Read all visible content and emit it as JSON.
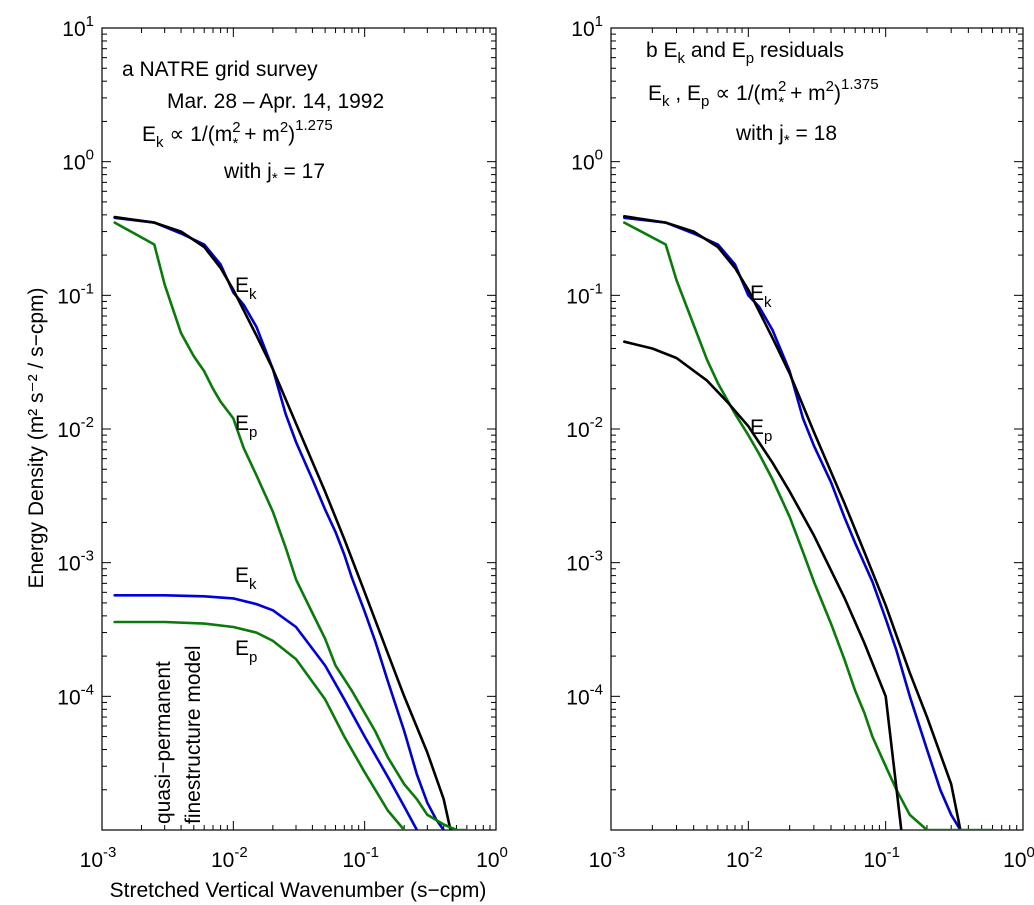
{
  "figure": {
    "ylabel": "Energy Density (m² s⁻² / s−cpm)",
    "xlabel": "Stretched Vertical Wavenumber (s−cpm)"
  },
  "chart_data": [
    {
      "type": "line",
      "panel": "a",
      "xscale": "log",
      "yscale": "log",
      "xlim": [
        0.001,
        1
      ],
      "ylim": [
        1e-05,
        10
      ],
      "x_ticks": [
        {
          "base": "10",
          "exp": "-3"
        },
        {
          "base": "10",
          "exp": "-2"
        },
        {
          "base": "10",
          "exp": "-1"
        },
        {
          "base": "10",
          "exp": "0"
        }
      ],
      "y_ticks": [
        {
          "base": "10",
          "exp": "-4"
        },
        {
          "base": "10",
          "exp": "-3"
        },
        {
          "base": "10",
          "exp": "-2"
        },
        {
          "base": "10",
          "exp": "-1"
        },
        {
          "base": "10",
          "exp": "0"
        },
        {
          "base": "10",
          "exp": "1"
        }
      ],
      "colors": {
        "ek_obs": "#0000cc",
        "ep_obs": "#0a7a0a",
        "fit": "#000000",
        "model_ek": "#0000dd",
        "model_ep": "#0a7a0a"
      },
      "title_lines": {
        "l1": "a  NATRE grid survey",
        "l2": "Mar. 28 – Apr. 14, 1992",
        "l3a": "E",
        "l3b": "k",
        "l3c": " ∝ 1/(m",
        "l3d": "2",
        "l3e": "*",
        "l3f": " + m",
        "l3g": "2",
        "l3h": ")",
        "l3i": "1.275",
        "l4a": "with j",
        "l4b": "*",
        "l4c": " = 17"
      },
      "labels": {
        "ek_main": "E",
        "ek_main_sub": "k",
        "ep_main": "E",
        "ep_main_sub": "p",
        "ek_model": "E",
        "ek_model_sub": "k",
        "ep_model": "E",
        "ep_model_sub": "p",
        "model_line1": "quasi−permanent",
        "model_line2": "finestructure model"
      },
      "series": [
        {
          "key": "ek_obs",
          "x": [
            0.00125,
            0.0025,
            0.004,
            0.006,
            0.008,
            0.01,
            0.012,
            0.015,
            0.02,
            0.025,
            0.03,
            0.04,
            0.05,
            0.06,
            0.07,
            0.08,
            0.1,
            0.12,
            0.15,
            0.2,
            0.25,
            0.3,
            0.35,
            0.4
          ],
          "y": [
            0.38,
            0.35,
            0.29,
            0.24,
            0.17,
            0.105,
            0.085,
            0.058,
            0.028,
            0.013,
            0.008,
            0.0042,
            0.0025,
            0.0017,
            0.00115,
            0.00077,
            0.00043,
            0.00026,
            0.00013,
            5.5e-05,
            2.6e-05,
            1.6e-05,
            1.2e-05,
            1e-05
          ]
        },
        {
          "key": "fit",
          "x": [
            0.00125,
            0.0025,
            0.004,
            0.006,
            0.008,
            0.01,
            0.015,
            0.02,
            0.03,
            0.05,
            0.07,
            0.1,
            0.15,
            0.2,
            0.3,
            0.4,
            0.45
          ],
          "y": [
            0.385,
            0.35,
            0.3,
            0.23,
            0.16,
            0.11,
            0.05,
            0.028,
            0.011,
            0.0034,
            0.0015,
            0.0006,
            0.00021,
            0.0001,
            3.8e-05,
            1.7e-05,
            1e-05
          ]
        },
        {
          "key": "ep_obs",
          "x": [
            0.00125,
            0.0025,
            0.003,
            0.004,
            0.005,
            0.006,
            0.007,
            0.008,
            0.01,
            0.012,
            0.015,
            0.02,
            0.025,
            0.03,
            0.04,
            0.05,
            0.06,
            0.08,
            0.1,
            0.12,
            0.15,
            0.2,
            0.25,
            0.3,
            0.4,
            0.5,
            0.6
          ],
          "y": [
            0.35,
            0.24,
            0.12,
            0.052,
            0.035,
            0.027,
            0.02,
            0.016,
            0.012,
            0.0072,
            0.0045,
            0.0024,
            0.0013,
            0.00075,
            0.00042,
            0.00027,
            0.00017,
            0.00011,
            7.5e-05,
            5.5e-05,
            3.5e-05,
            2.2e-05,
            1.7e-05,
            1.3e-05,
            1.1e-05,
            1e-05,
            1e-05
          ]
        },
        {
          "key": "model_ek",
          "x": [
            0.00125,
            0.003,
            0.006,
            0.01,
            0.015,
            0.02,
            0.03,
            0.05,
            0.07,
            0.1,
            0.15,
            0.2,
            0.25
          ],
          "y": [
            0.00057,
            0.00057,
            0.00056,
            0.00054,
            0.00049,
            0.00044,
            0.00033,
            0.00017,
            9.5e-05,
            5e-05,
            2.5e-05,
            1.5e-05,
            1e-05
          ]
        },
        {
          "key": "model_ep",
          "x": [
            0.00125,
            0.003,
            0.006,
            0.01,
            0.015,
            0.02,
            0.03,
            0.05,
            0.07,
            0.1,
            0.15,
            0.2
          ],
          "y": [
            0.00036,
            0.00036,
            0.00035,
            0.00033,
            0.0003,
            0.00026,
            0.00019,
            9.5e-05,
            5e-05,
            2.7e-05,
            1.4e-05,
            1e-05
          ]
        }
      ]
    },
    {
      "type": "line",
      "panel": "b",
      "xscale": "log",
      "yscale": "log",
      "xlim": [
        0.001,
        1
      ],
      "ylim": [
        1e-05,
        10
      ],
      "x_ticks": [
        {
          "base": "10",
          "exp": "-3"
        },
        {
          "base": "10",
          "exp": "-2"
        },
        {
          "base": "10",
          "exp": "-1"
        },
        {
          "base": "10",
          "exp": "0"
        }
      ],
      "y_ticks": [
        {
          "base": "10",
          "exp": "-4"
        },
        {
          "base": "10",
          "exp": "-3"
        },
        {
          "base": "10",
          "exp": "-2"
        },
        {
          "base": "10",
          "exp": "-1"
        },
        {
          "base": "10",
          "exp": "0"
        },
        {
          "base": "10",
          "exp": "1"
        }
      ],
      "colors": {
        "ek_obs": "#0000cc",
        "ep_obs": "#0a7a0a",
        "fit": "#000000"
      },
      "title_lines": {
        "l1a": "b  E",
        "l1b": "k",
        "l1c": " and E",
        "l1d": "p",
        "l1e": " residuals",
        "l2a": "E",
        "l2b": "k",
        "l2c": " , E",
        "l2d": "p",
        "l2e": " ∝ 1/(m",
        "l2f": "2",
        "l2g": "*",
        "l2h": " + m",
        "l2i": "2",
        "l2j": ")",
        "l2k": "1.375",
        "l3a": "with j",
        "l3b": "*",
        "l3c": " = 18"
      },
      "labels": {
        "ek_main": "E",
        "ek_main_sub": "k",
        "ep_main": "E",
        "ep_main_sub": "p"
      },
      "series": [
        {
          "key": "ek_obs",
          "x": [
            0.00125,
            0.0025,
            0.004,
            0.006,
            0.008,
            0.01,
            0.012,
            0.015,
            0.02,
            0.025,
            0.03,
            0.04,
            0.05,
            0.06,
            0.08,
            0.1,
            0.12,
            0.15,
            0.2,
            0.25,
            0.3,
            0.35
          ],
          "y": [
            0.38,
            0.35,
            0.29,
            0.24,
            0.17,
            0.1,
            0.082,
            0.055,
            0.027,
            0.012,
            0.0075,
            0.004,
            0.0022,
            0.0014,
            0.00072,
            0.00038,
            0.00022,
            0.0001,
            4e-05,
            2e-05,
            1.3e-05,
            1e-05
          ]
        },
        {
          "key": "fit_ek",
          "x": [
            0.00125,
            0.0025,
            0.004,
            0.006,
            0.008,
            0.01,
            0.015,
            0.02,
            0.03,
            0.05,
            0.07,
            0.1,
            0.15,
            0.2,
            0.3,
            0.35
          ],
          "y": [
            0.39,
            0.35,
            0.3,
            0.23,
            0.16,
            0.11,
            0.048,
            0.026,
            0.0095,
            0.0028,
            0.0012,
            0.00048,
            0.00015,
            7e-05,
            2.2e-05,
            1e-05
          ]
        },
        {
          "key": "ep_obs",
          "x": [
            0.00125,
            0.0025,
            0.003,
            0.004,
            0.005,
            0.006,
            0.008,
            0.01,
            0.012,
            0.015,
            0.02,
            0.025,
            0.03,
            0.04,
            0.05,
            0.06,
            0.07,
            0.08,
            0.1,
            0.12,
            0.15,
            0.2,
            0.25,
            0.3,
            0.4,
            0.6
          ],
          "y": [
            0.35,
            0.24,
            0.13,
            0.06,
            0.033,
            0.022,
            0.013,
            0.009,
            0.0065,
            0.0042,
            0.0022,
            0.0012,
            0.00072,
            0.00035,
            0.00019,
            0.00011,
            7.5e-05,
            5e-05,
            3e-05,
            2e-05,
            1.3e-05,
            1e-05,
            1e-05,
            1e-05,
            1e-05,
            1e-05
          ]
        },
        {
          "key": "fit_ep",
          "x": [
            0.00125,
            0.002,
            0.003,
            0.005,
            0.007,
            0.01,
            0.015,
            0.02,
            0.03,
            0.05,
            0.07,
            0.1,
            0.13
          ],
          "y": [
            0.045,
            0.04,
            0.034,
            0.023,
            0.016,
            0.0105,
            0.0056,
            0.0034,
            0.0016,
            0.00055,
            0.00025,
            0.0001,
            1e-05
          ]
        }
      ]
    }
  ]
}
